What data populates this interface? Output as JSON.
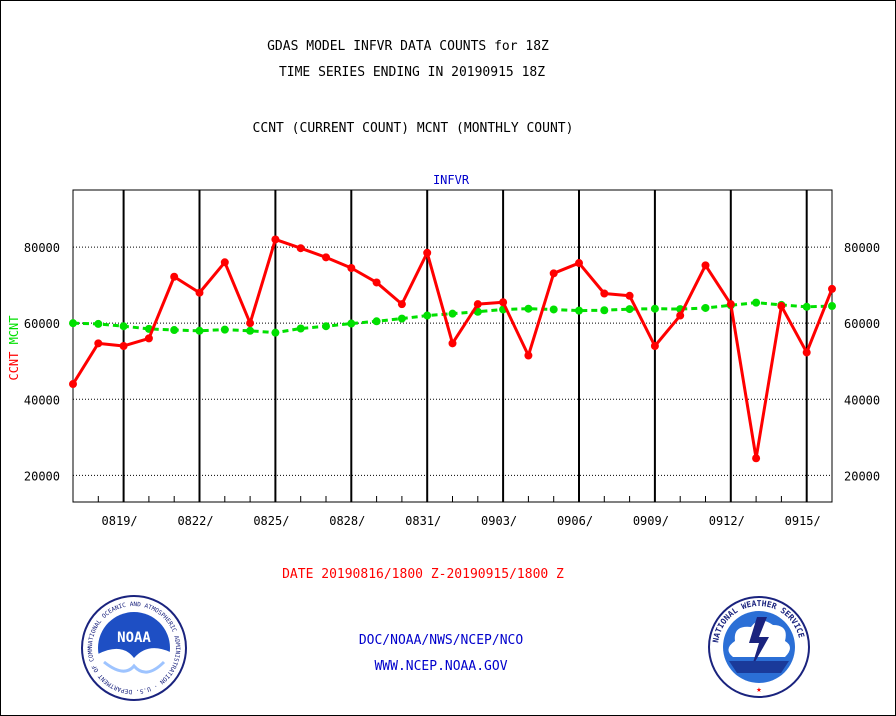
{
  "header": {
    "line1": "GDAS MODEL INFVR DATA COUNTS for 18Z",
    "line2": "TIME SERIES ENDING IN 20190915 18Z",
    "line3": "CCNT (CURRENT COUNT) MCNT (MONTHLY COUNT)"
  },
  "footer": {
    "date_range": "DATE 20190816/1800 Z-20190915/1800 Z",
    "org": "DOC/NOAA/NWS/NCEP/NCO",
    "url": "WWW.NCEP.NOAA.GOV"
  },
  "logos": {
    "noaa": {
      "center_text": "NOAA",
      "ring_text": "NATIONAL OCEANIC AND ATMOSPHERIC ADMINISTRATION · U.S. DEPARTMENT OF COMMERCE"
    },
    "nws": {
      "ring_text": "NATIONAL WEATHER SERVICE"
    }
  },
  "colors": {
    "ccnt": "#ff0000",
    "mcnt": "#00e000",
    "title_blue": "#0000cc",
    "text": "#000000"
  },
  "chart_data": {
    "type": "line",
    "title": "INFVR",
    "ylabel_series": [
      "CCNT",
      "MCNT"
    ],
    "ylim": [
      13000,
      95000
    ],
    "yticks": [
      20000,
      40000,
      60000,
      80000
    ],
    "xlim": [
      0,
      30
    ],
    "x_tick_positions": [
      2,
      5,
      8,
      11,
      14,
      17,
      20,
      23,
      26,
      29
    ],
    "x_tick_labels": [
      "0819/",
      "0822/",
      "0825/",
      "0828/",
      "0831/",
      "0903/",
      "0906/",
      "0909/",
      "0912/",
      "0915/"
    ],
    "grid": true,
    "series": [
      {
        "name": "CCNT",
        "color": "#ff0000",
        "x": [
          0,
          1,
          2,
          3,
          4,
          5,
          6,
          7,
          8,
          9,
          10,
          11,
          12,
          13,
          14,
          15,
          16,
          17,
          18,
          19,
          20,
          21,
          22,
          23,
          24,
          25,
          26,
          27,
          28,
          29,
          30
        ],
        "values": [
          44000,
          54700,
          54000,
          56000,
          72200,
          68000,
          76000,
          60000,
          82000,
          79700,
          77300,
          74500,
          70700,
          65000,
          78500,
          54700,
          65000,
          65500,
          51500,
          73100,
          75800,
          67800,
          67200,
          54000,
          62000,
          75200,
          65000,
          24500,
          64500,
          52300,
          69000
        ]
      },
      {
        "name": "MCNT",
        "color": "#00e000",
        "x": [
          0,
          1,
          2,
          3,
          4,
          5,
          6,
          7,
          8,
          9,
          10,
          11,
          12,
          13,
          14,
          15,
          16,
          17,
          18,
          19,
          20,
          21,
          22,
          23,
          24,
          25,
          26,
          27,
          28,
          29,
          30
        ],
        "values": [
          60000,
          59800,
          59200,
          58500,
          58200,
          58000,
          58300,
          58000,
          57500,
          58600,
          59200,
          59900,
          60500,
          61200,
          62000,
          62500,
          63000,
          63600,
          63800,
          63600,
          63300,
          63400,
          63700,
          63800,
          63700,
          64000,
          64700,
          65400,
          64800,
          64300,
          64500
        ]
      }
    ]
  }
}
